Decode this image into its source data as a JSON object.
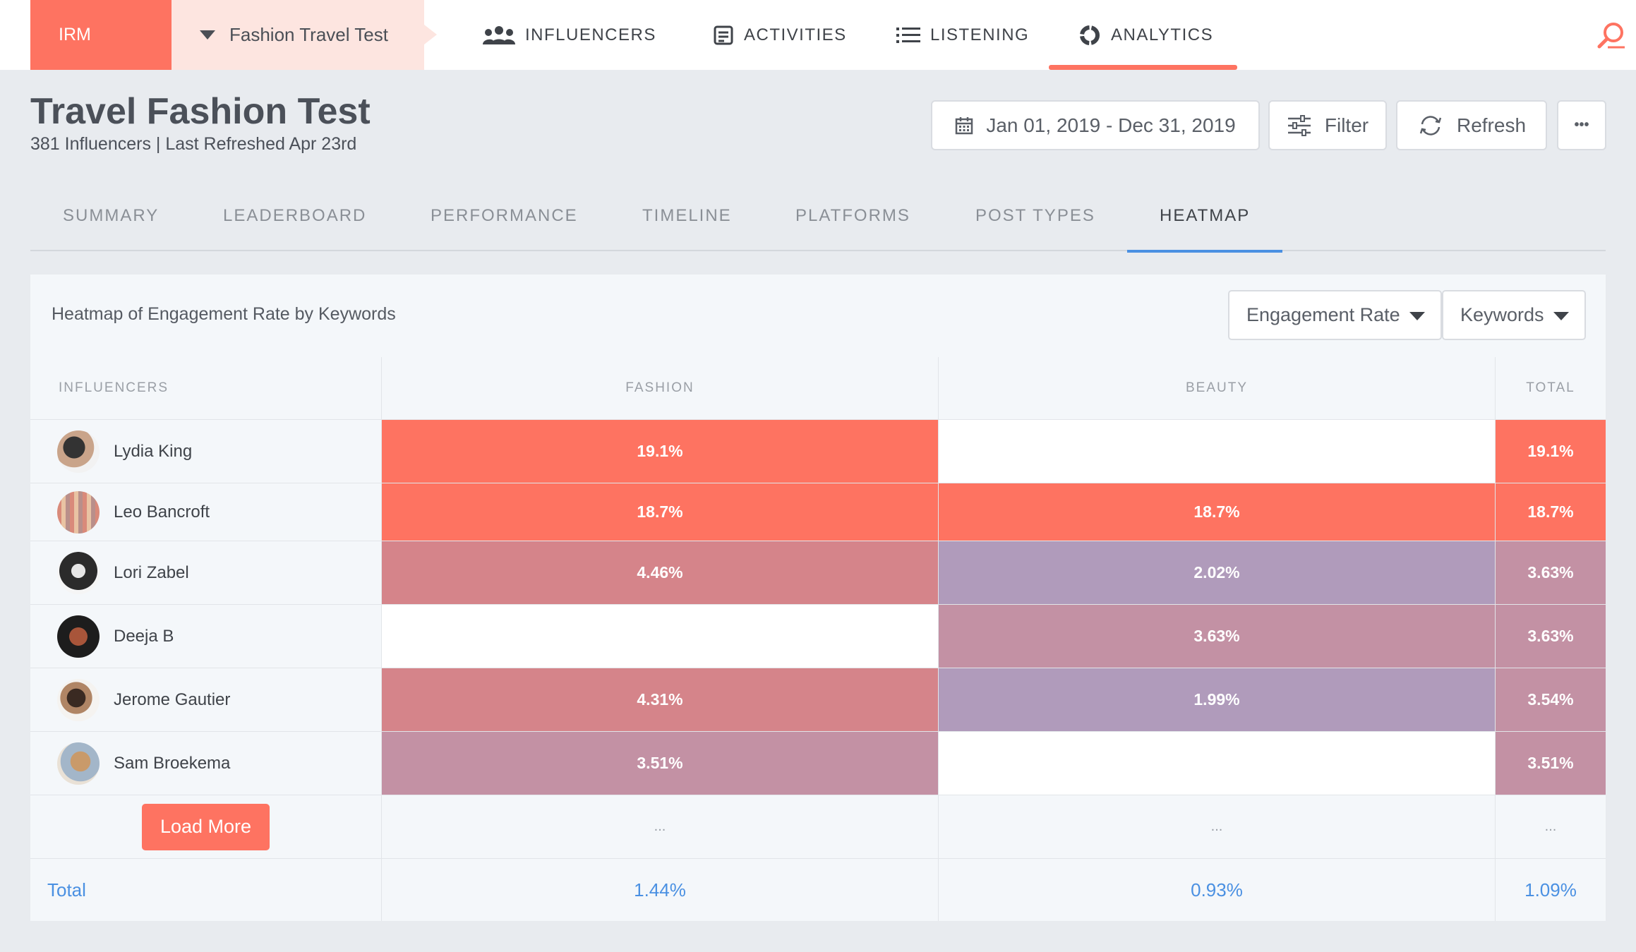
{
  "nav": {
    "brand": "IRM",
    "project": "Fashion Travel Test",
    "items": [
      {
        "label": "INFLUENCERS",
        "icon": "people-icon"
      },
      {
        "label": "ACTIVITIES",
        "icon": "document-icon"
      },
      {
        "label": "LISTENING",
        "icon": "list-icon"
      },
      {
        "label": "ANALYTICS",
        "icon": "analytics-ring-icon",
        "active": true
      }
    ]
  },
  "header": {
    "title": "Travel Fashion Test",
    "subtitle": "381 Influencers | Last Refreshed Apr 23rd",
    "date_range": "Jan 01, 2019 - Dec 31, 2019",
    "filter_label": "Filter",
    "refresh_label": "Refresh",
    "more_label": "•••"
  },
  "tabs": [
    "SUMMARY",
    "LEADERBOARD",
    "PERFORMANCE",
    "TIMELINE",
    "PLATFORMS",
    "POST TYPES",
    "HEATMAP"
  ],
  "active_tab": "HEATMAP",
  "heatmap": {
    "title": "Heatmap of Engagement Rate by Keywords",
    "metric_select": "Engagement Rate",
    "dimension_select": "Keywords",
    "columns": {
      "influencers": "INFLUENCERS",
      "fashion": "FASHION",
      "beauty": "BEAUTY",
      "total": "TOTAL"
    },
    "rows": [
      {
        "name": "Lydia King",
        "fashion": "19.1%",
        "beauty": "",
        "total": "19.1%"
      },
      {
        "name": "Leo Bancroft",
        "fashion": "18.7%",
        "beauty": "18.7%",
        "total": "18.7%"
      },
      {
        "name": "Lori Zabel",
        "fashion": "4.46%",
        "beauty": "2.02%",
        "total": "3.63%"
      },
      {
        "name": "Deeja B",
        "fashion": "",
        "beauty": "3.63%",
        "total": "3.63%"
      },
      {
        "name": "Jerome Gautier",
        "fashion": "4.31%",
        "beauty": "1.99%",
        "total": "3.54%"
      },
      {
        "name": "Sam Broekema",
        "fashion": "3.51%",
        "beauty": "",
        "total": "3.51%"
      }
    ],
    "load_more_label": "Load More",
    "ellipsis": "...",
    "totals": {
      "label": "Total",
      "fashion": "1.44%",
      "beauty": "0.93%",
      "total": "1.09%"
    }
  },
  "colors": {
    "accent": "#fe7361",
    "link": "#4a90e2",
    "heat_high": "#fe7361",
    "heat_mid_red": "#d5848a",
    "heat_mid": "#c391a4",
    "heat_low": "#b09bbb"
  }
}
